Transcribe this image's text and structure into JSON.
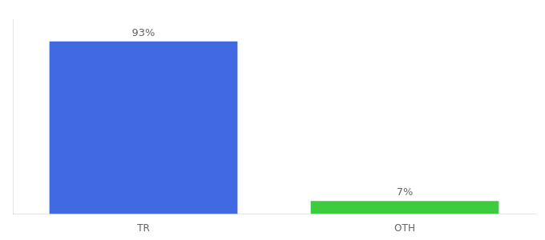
{
  "chart_data": {
    "type": "bar",
    "categories": [
      "TR",
      "OTH"
    ],
    "values": [
      93,
      7
    ],
    "value_labels": [
      "93%",
      "7%"
    ],
    "colors": [
      "#4169e1",
      "#3dcc3d"
    ],
    "ylim": [
      0,
      105
    ],
    "data_labels": true,
    "tick_labels": "x",
    "grid": false
  }
}
